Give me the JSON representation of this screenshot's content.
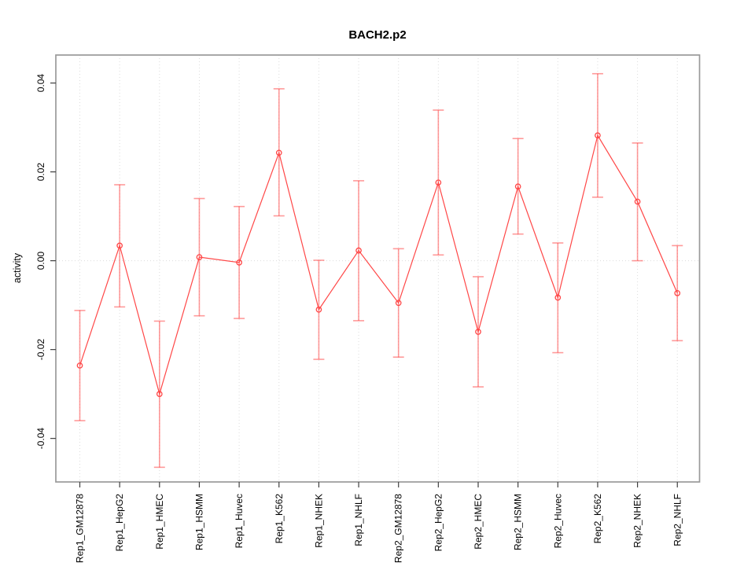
{
  "window": {
    "background": "#ffffff"
  },
  "chart_data": {
    "type": "line",
    "subtype": "points-with-error-bars",
    "title": "BACH2.p2",
    "xlabel": "",
    "ylabel": "activity",
    "legend": "none",
    "grid": {
      "vertical_dotted_per_category": true,
      "horizontal_dotted_at_zero": true
    },
    "ylim": [
      -0.0498,
      0.0463
    ],
    "yticks": [
      -0.04,
      -0.02,
      0.0,
      0.02,
      0.04
    ],
    "ytick_labels": [
      "-0.04",
      "-0.02",
      "0.00",
      "0.02",
      "0.04"
    ],
    "categories": [
      "Rep1_GM12878",
      "Rep1_HepG2",
      "Rep1_HMEC",
      "Rep1_HSMM",
      "Rep1_Huvec",
      "Rep1_K562",
      "Rep1_NHEK",
      "Rep1_NHLF",
      "Rep2_GM12878",
      "Rep2_HepG2",
      "Rep2_HMEC",
      "Rep2_HSMM",
      "Rep2_Huvec",
      "Rep2_K562",
      "Rep2_NHEK",
      "Rep2_NHLF"
    ],
    "series": [
      {
        "name": "activity",
        "values": [
          -0.0236,
          0.0034,
          -0.03,
          0.0008,
          -0.0004,
          0.0243,
          -0.011,
          0.0023,
          -0.0095,
          0.0176,
          -0.016,
          0.0167,
          -0.0083,
          0.0282,
          0.0133,
          -0.0073
        ],
        "upper": [
          -0.0112,
          0.0171,
          -0.0136,
          0.014,
          0.0122,
          0.0387,
          0.0001,
          0.018,
          0.0027,
          0.0339,
          -0.0036,
          0.0275,
          0.004,
          0.0421,
          0.0265,
          0.0034
        ],
        "lower": [
          -0.036,
          -0.0104,
          -0.0465,
          -0.0124,
          -0.013,
          0.0101,
          -0.0222,
          -0.0135,
          -0.0217,
          0.0013,
          -0.0284,
          0.006,
          -0.0207,
          0.0143,
          0.0,
          -0.018
        ]
      }
    ],
    "colors": {
      "line": "#ff4747",
      "point": "#ff4747",
      "error_bar": "#ff4747",
      "error_bar_opacity": 0.55,
      "grid": "#dcdcdc",
      "box": "#9a9a9a",
      "tick": "#404040",
      "text": "#000000",
      "background": "#ffffff"
    }
  }
}
